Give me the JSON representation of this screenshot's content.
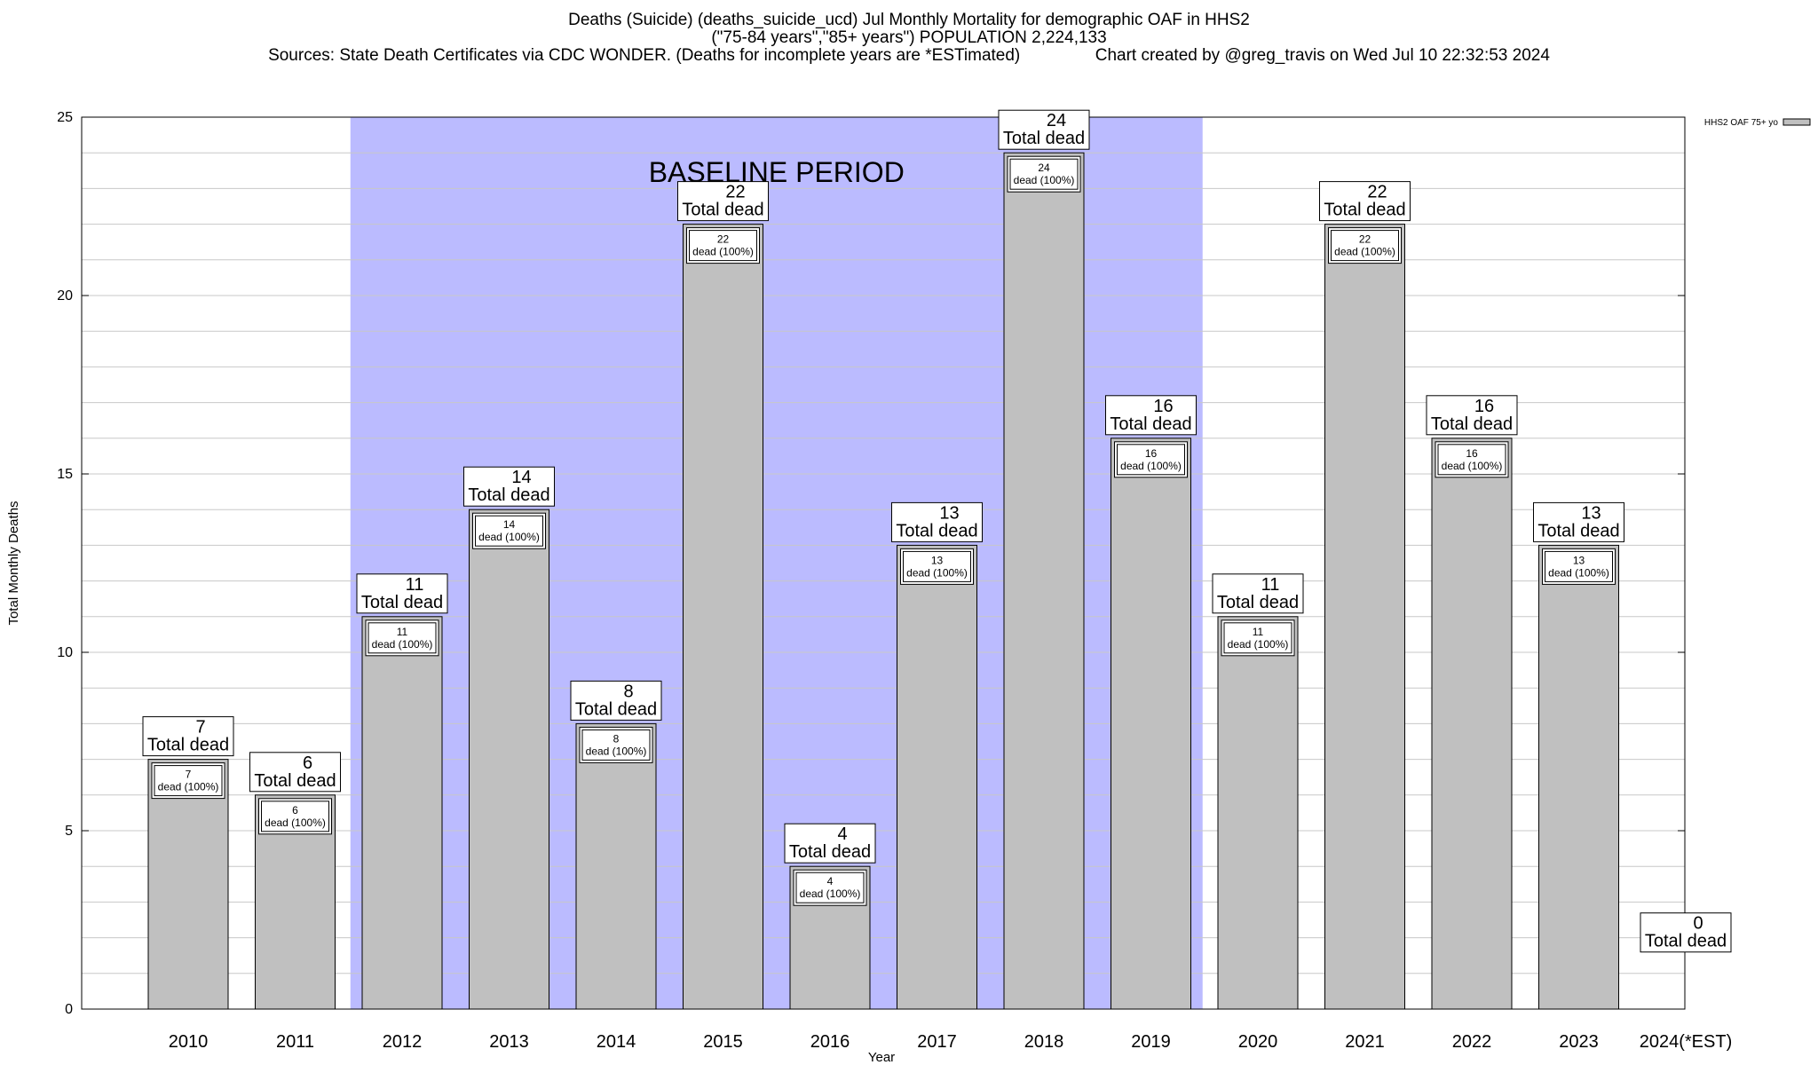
{
  "title": {
    "line1": "Deaths (Suicide) (deaths_suicide_ucd) Jul Monthly Mortality for demographic OAF in HHS2",
    "line2": "(\"75-84 years\",\"85+ years\") POPULATION 2,224,133",
    "line3": "Sources: State Death Certificates via CDC WONDER. (Deaths for incomplete years are *ESTimated)                Chart created by @greg_travis on Wed Jul 10 22:32:53 2024"
  },
  "chart_data": {
    "type": "bar",
    "xlabel": "Year",
    "ylabel": "Total Monthly Deaths",
    "ylim": [
      0,
      25
    ],
    "yticks": [
      0,
      5,
      10,
      15,
      20,
      25
    ],
    "grid": true,
    "legend": {
      "position": "top-right",
      "label": "HHS2 OAF 75+ yo"
    },
    "baseline": {
      "label": "BASELINE PERIOD",
      "from": "2012",
      "to": "2019"
    },
    "categories": [
      "2010",
      "2011",
      "2012",
      "2013",
      "2014",
      "2015",
      "2016",
      "2017",
      "2018",
      "2019",
      "2020",
      "2021",
      "2022",
      "2023",
      "2024(*EST)"
    ],
    "values": [
      7,
      6,
      11,
      14,
      8,
      22,
      4,
      13,
      24,
      16,
      11,
      22,
      16,
      13,
      0
    ],
    "total_label": "Total dead",
    "inner_label": "dead (100%)",
    "colors": {
      "bar": "#c0c0c0",
      "baseline": "#bbbbff",
      "grid": "#c8c8c8"
    }
  }
}
